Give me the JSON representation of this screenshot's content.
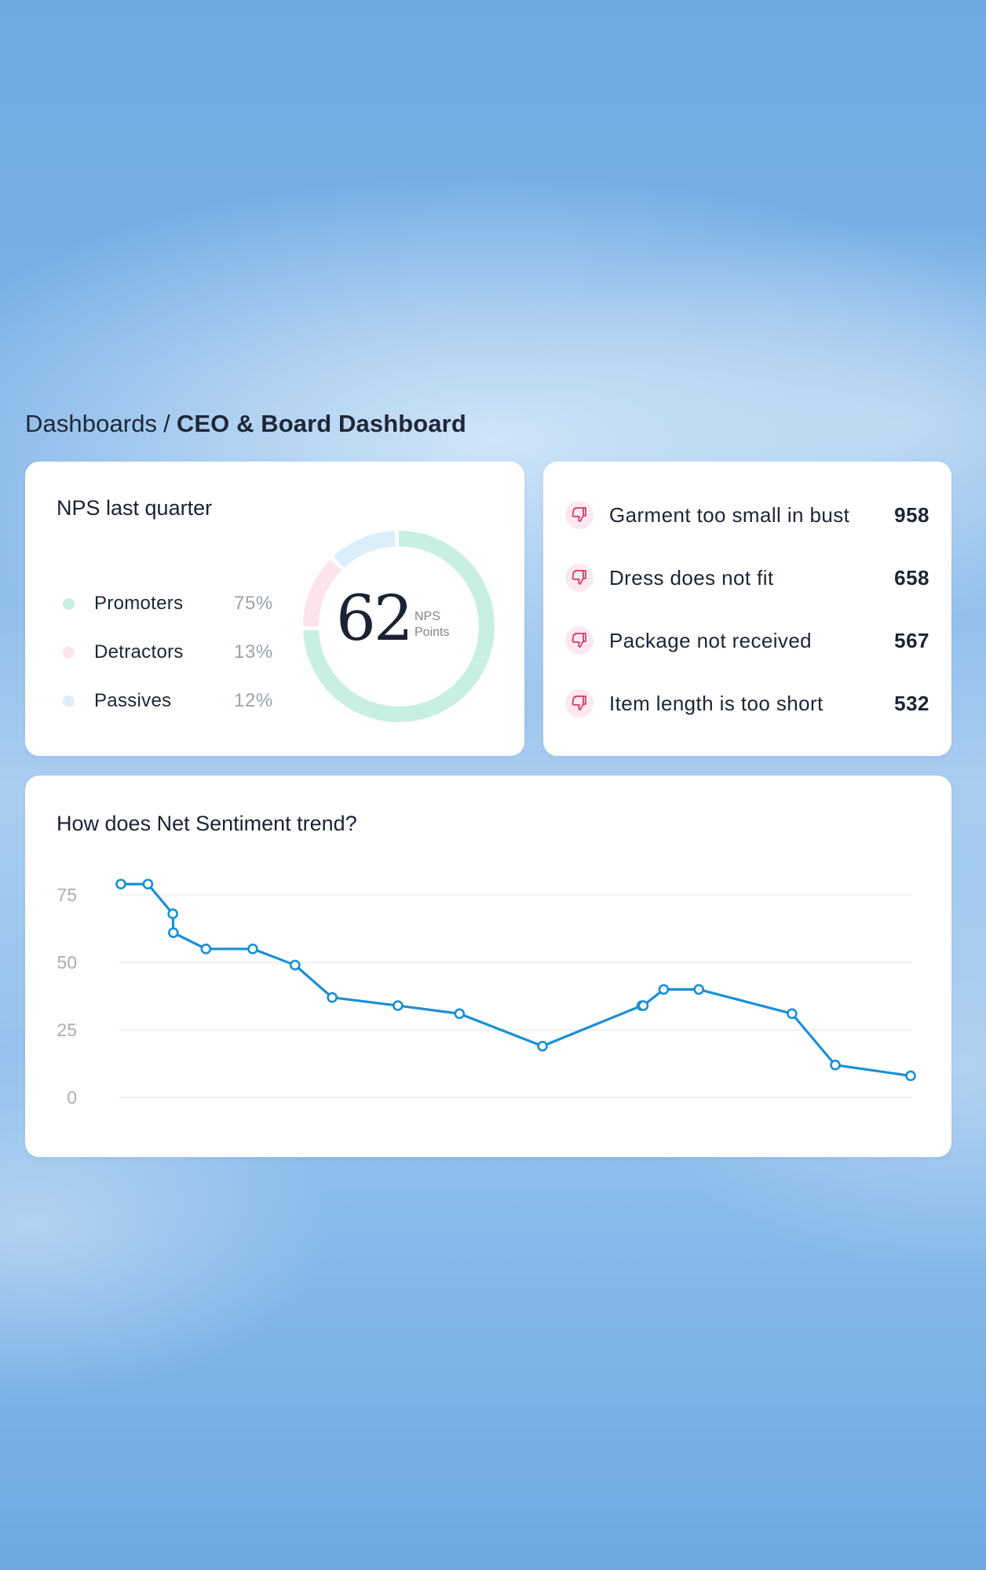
{
  "breadcrumb": {
    "parent": "Dashboards",
    "separator": "/",
    "current": "CEO & Board Dashboard"
  },
  "nps_card": {
    "title": "NPS last quarter",
    "value": "62",
    "unit_line1": "NPS",
    "unit_line2": "Points",
    "legend": [
      {
        "label": "Promoters",
        "percent": "75%",
        "color": "#c8f0e0"
      },
      {
        "label": "Detractors",
        "percent": "13%",
        "color": "#fde4ea"
      },
      {
        "label": "Passives",
        "percent": "12%",
        "color": "#ddeefb"
      }
    ]
  },
  "issues_card": {
    "icon": "thumbs-down-icon",
    "accent_color": "#d6336c",
    "items": [
      {
        "label": "Garment too small in bust",
        "count": "958"
      },
      {
        "label": "Dress does not fit",
        "count": "658"
      },
      {
        "label": "Package not received",
        "count": "567"
      },
      {
        "label": "Item length is too short",
        "count": "532"
      }
    ]
  },
  "trend_card": {
    "title": "How does Net Sentiment trend?"
  },
  "chart_data": {
    "type": "line",
    "title": "How does Net Sentiment trend?",
    "xlabel": "",
    "ylabel": "",
    "ylim": [
      0,
      75
    ],
    "yticks": [
      0,
      25,
      50,
      75
    ],
    "grid": true,
    "line_color": "#1a8fd6",
    "x": [
      0,
      5.3,
      10.2,
      10.3,
      16.7,
      25.9,
      34.2,
      41.5,
      54.4,
      66.5,
      82.8,
      102.3,
      102.6,
      106.6,
      113.5,
      131.8,
      140.3,
      155.1
    ],
    "y": [
      79,
      79,
      68,
      61,
      55,
      55,
      49,
      37,
      34,
      31,
      19,
      34,
      34,
      40,
      40,
      31,
      12,
      8
    ]
  }
}
